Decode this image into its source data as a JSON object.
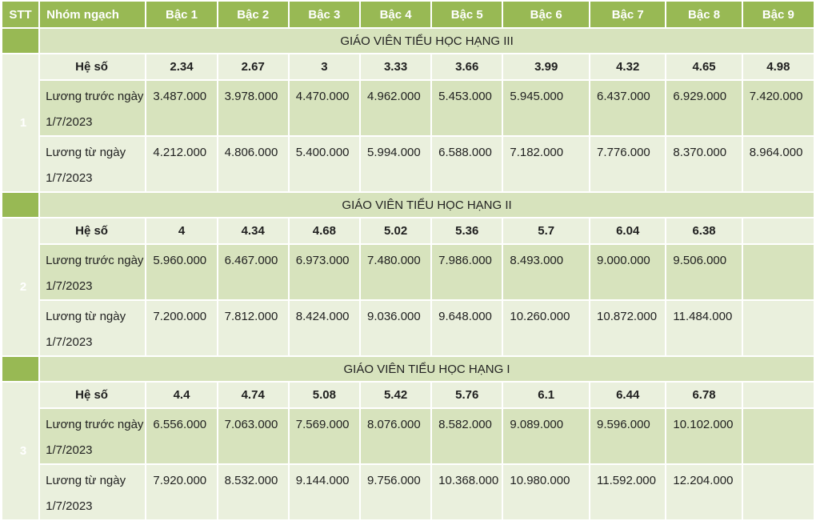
{
  "header": {
    "stt": "STT",
    "nhom": "Nhóm ngạch",
    "levels": [
      "Bậc 1",
      "Bậc 2",
      "Bậc 3",
      "Bậc 4",
      "Bậc 5",
      "Bậc 6",
      "Bậc 7",
      "Bậc 8",
      "Bậc 9"
    ]
  },
  "groups": [
    {
      "stt": "1",
      "title": "GIÁO VIÊN TIỂU HỌC HẠNG III",
      "heso_label": "Hệ số",
      "heso": [
        "2.34",
        "2.67",
        "3",
        "3.33",
        "3.66",
        "3.99",
        "4.32",
        "4.65",
        "4.98"
      ],
      "before_label": "Lương trước ngày 1/7/2023",
      "before": [
        "3.487.000",
        "3.978.000",
        "4.470.000",
        "4.962.000",
        "5.453.000",
        "5.945.000",
        "6.437.000",
        "6.929.000",
        "7.420.000"
      ],
      "after_label": "Lương từ ngày 1/7/2023",
      "after": [
        "4.212.000",
        "4.806.000",
        "5.400.000",
        "5.994.000",
        "6.588.000",
        "7.182.000",
        "7.776.000",
        "8.370.000",
        "8.964.000"
      ]
    },
    {
      "stt": "2",
      "title": "GIÁO VIÊN TIỂU HỌC HẠNG II",
      "heso_label": "Hệ số",
      "heso": [
        "4",
        "4.34",
        "4.68",
        "5.02",
        "5.36",
        "5.7",
        "6.04",
        "6.38",
        ""
      ],
      "before_label": "Lương trước ngày 1/7/2023",
      "before": [
        "5.960.000",
        "6.467.000",
        "6.973.000",
        "7.480.000",
        "7.986.000",
        "8.493.000",
        "9.000.000",
        "9.506.000",
        ""
      ],
      "after_label": "Lương từ ngày 1/7/2023",
      "after": [
        "7.200.000",
        "7.812.000",
        "8.424.000",
        "9.036.000",
        "9.648.000",
        "10.260.000",
        "10.872.000",
        "11.484.000",
        ""
      ]
    },
    {
      "stt": "3",
      "title": "GIÁO VIÊN TIỂU HỌC HẠNG I",
      "heso_label": "Hệ số",
      "heso": [
        "4.4",
        "4.74",
        "5.08",
        "5.42",
        "5.76",
        "6.1",
        "6.44",
        "6.78",
        ""
      ],
      "before_label": "Lương trước ngày 1/7/2023",
      "before": [
        "6.556.000",
        "7.063.000",
        "7.569.000",
        "8.076.000",
        "8.582.000",
        "9.089.000",
        "9.596.000",
        "10.102.000",
        ""
      ],
      "after_label": "Lương từ ngày 1/7/2023",
      "after": [
        "7.920.000",
        "8.532.000",
        "9.144.000",
        "9.756.000",
        "10.368.000",
        "10.980.000",
        "11.592.000",
        "12.204.000",
        ""
      ]
    }
  ]
}
